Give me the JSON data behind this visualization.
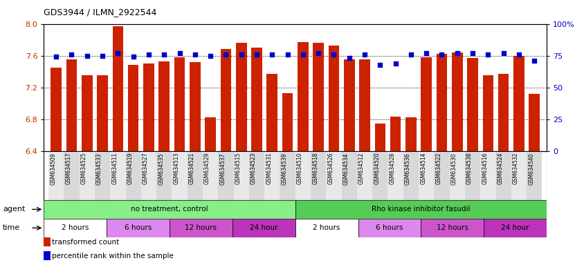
{
  "title": "GDS3944 / ILMN_2922544",
  "samples": [
    "GSM634509",
    "GSM634517",
    "GSM634525",
    "GSM634533",
    "GSM634511",
    "GSM634519",
    "GSM634527",
    "GSM634535",
    "GSM634513",
    "GSM634521",
    "GSM634529",
    "GSM634537",
    "GSM634515",
    "GSM634523",
    "GSM634531",
    "GSM634539",
    "GSM634510",
    "GSM634518",
    "GSM634526",
    "GSM634534",
    "GSM634512",
    "GSM634520",
    "GSM634528",
    "GSM634536",
    "GSM634514",
    "GSM634522",
    "GSM634530",
    "GSM634538",
    "GSM634516",
    "GSM634524",
    "GSM634532",
    "GSM634540"
  ],
  "bar_values": [
    7.45,
    7.55,
    7.35,
    7.35,
    7.97,
    7.48,
    7.5,
    7.53,
    7.58,
    7.52,
    6.82,
    7.68,
    7.76,
    7.7,
    7.37,
    7.13,
    7.77,
    7.76,
    7.73,
    7.55,
    7.55,
    6.75,
    6.83,
    6.82,
    7.58,
    7.62,
    7.64,
    7.57,
    7.35,
    7.37,
    7.6,
    7.12
  ],
  "percentile_values": [
    74,
    76,
    75,
    75,
    77,
    74,
    76,
    76,
    77,
    76,
    75,
    76,
    76,
    76,
    76,
    76,
    76,
    77,
    76,
    73,
    76,
    68,
    69,
    76,
    77,
    76,
    77,
    77,
    76,
    77,
    76,
    71
  ],
  "ylim_left": [
    6.4,
    8.0
  ],
  "ylim_right": [
    0,
    100
  ],
  "yticks_left": [
    6.4,
    6.8,
    7.2,
    7.6,
    8.0
  ],
  "yticks_right": [
    0,
    25,
    50,
    75,
    100
  ],
  "ytick_labels_right": [
    "0",
    "25",
    "50",
    "75",
    "100%"
  ],
  "bar_color": "#cc2200",
  "percentile_color": "#0000cc",
  "agent_groups": [
    {
      "label": "no treatment, control",
      "start": 0,
      "end": 16,
      "color": "#88ee88"
    },
    {
      "label": "Rho kinase inhibitor fasudil",
      "start": 16,
      "end": 32,
      "color": "#55cc55"
    }
  ],
  "time_groups": [
    {
      "label": "2 hours",
      "start": 0,
      "end": 4,
      "color": "#ffffff"
    },
    {
      "label": "6 hours",
      "start": 4,
      "end": 8,
      "color": "#dd88ee"
    },
    {
      "label": "12 hours",
      "start": 8,
      "end": 12,
      "color": "#cc55cc"
    },
    {
      "label": "24 hour",
      "start": 12,
      "end": 16,
      "color": "#bb33bb"
    },
    {
      "label": "2 hours",
      "start": 16,
      "end": 20,
      "color": "#ffffff"
    },
    {
      "label": "6 hours",
      "start": 20,
      "end": 24,
      "color": "#dd88ee"
    },
    {
      "label": "12 hours",
      "start": 24,
      "end": 28,
      "color": "#cc55cc"
    },
    {
      "label": "24 hour",
      "start": 28,
      "end": 32,
      "color": "#bb33bb"
    }
  ],
  "legend_items": [
    {
      "label": "transformed count",
      "color": "#cc2200"
    },
    {
      "label": "percentile rank within the sample",
      "color": "#0000cc"
    }
  ],
  "agent_label": "agent",
  "time_label": "time",
  "bg_color": "#ffffff",
  "tick_label_color_left": "#cc2200",
  "tick_label_color_right": "#0000cc",
  "xlabel_bg_even": "#e8e8e8",
  "xlabel_bg_odd": "#d8d8d8"
}
